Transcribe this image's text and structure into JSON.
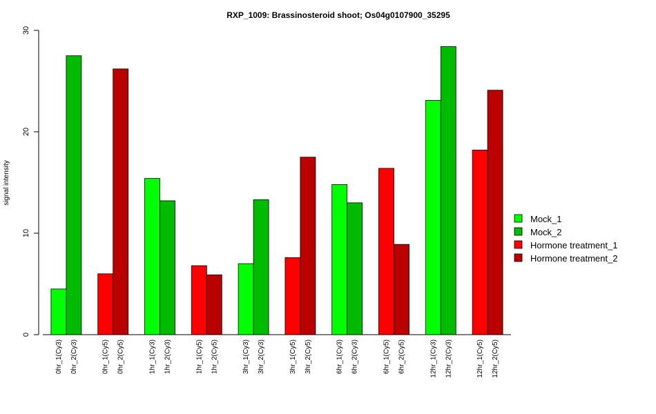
{
  "chart_data": {
    "type": "bar",
    "title": "RXP_1009: Brassinosteroid shoot; Os04g0107900_35295",
    "xlabel": "",
    "ylabel": "signal intensity",
    "ylim": [
      0,
      30
    ],
    "yticks": [
      0,
      10,
      20,
      30
    ],
    "grid": false,
    "legend_position": "right",
    "legend": [
      {
        "name": "Mock_1",
        "color": "#00ff00"
      },
      {
        "name": "Mock_2",
        "color": "#00bb00"
      },
      {
        "name": "Hormone treatment_1",
        "color": "#ff0000"
      },
      {
        "name": "Hormone treatment_2",
        "color": "#bb0000"
      }
    ],
    "groups": [
      {
        "bars": [
          {
            "label": "0hr_1(Cy3)",
            "value": 4.5,
            "color": "#00ff00"
          },
          {
            "label": "0hr_2(Cy3)",
            "value": 27.5,
            "color": "#00bb00"
          }
        ]
      },
      {
        "bars": [
          {
            "label": "0hr_1(Cy5)",
            "value": 6.0,
            "color": "#ff0000"
          },
          {
            "label": "0hr_2(Cy5)",
            "value": 26.2,
            "color": "#bb0000"
          }
        ]
      },
      {
        "bars": [
          {
            "label": "1hr_1(Cy3)",
            "value": 15.4,
            "color": "#00ff00"
          },
          {
            "label": "1hr_2(Cy3)",
            "value": 13.2,
            "color": "#00bb00"
          }
        ]
      },
      {
        "bars": [
          {
            "label": "1hr_1(Cy5)",
            "value": 6.8,
            "color": "#ff0000"
          },
          {
            "label": "1hr_2(Cy5)",
            "value": 5.9,
            "color": "#bb0000"
          }
        ]
      },
      {
        "bars": [
          {
            "label": "3hr_1(Cy3)",
            "value": 7.0,
            "color": "#00ff00"
          },
          {
            "label": "3hr_2(Cy3)",
            "value": 13.3,
            "color": "#00bb00"
          }
        ]
      },
      {
        "bars": [
          {
            "label": "3hr_1(Cy5)",
            "value": 7.6,
            "color": "#ff0000"
          },
          {
            "label": "3hr_2(Cy5)",
            "value": 17.5,
            "color": "#bb0000"
          }
        ]
      },
      {
        "bars": [
          {
            "label": "6hr_1(Cy3)",
            "value": 14.8,
            "color": "#00ff00"
          },
          {
            "label": "6hr_2(Cy3)",
            "value": 13.0,
            "color": "#00bb00"
          }
        ]
      },
      {
        "bars": [
          {
            "label": "6hr_1(Cy5)",
            "value": 16.4,
            "color": "#ff0000"
          },
          {
            "label": "6hr_2(Cy5)",
            "value": 8.9,
            "color": "#bb0000"
          }
        ]
      },
      {
        "bars": [
          {
            "label": "12hr_1(Cy3)",
            "value": 23.1,
            "color": "#00ff00"
          },
          {
            "label": "12hr_2(Cy3)",
            "value": 28.4,
            "color": "#00bb00"
          }
        ]
      },
      {
        "bars": [
          {
            "label": "12hr_1(Cy5)",
            "value": 18.2,
            "color": "#ff0000"
          },
          {
            "label": "12hr_2(Cy5)",
            "value": 24.1,
            "color": "#bb0000"
          }
        ]
      }
    ]
  }
}
